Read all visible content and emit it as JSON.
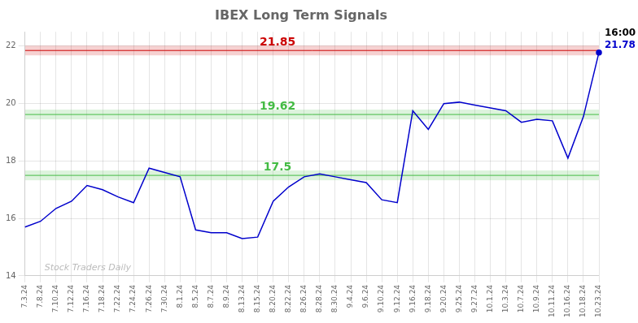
{
  "chart_data": {
    "type": "line",
    "title": "IBEX Long Term Signals",
    "categories": [
      "7.3.24",
      "7.8.24",
      "7.10.24",
      "7.12.24",
      "7.16.24",
      "7.18.24",
      "7.22.24",
      "7.24.24",
      "7.26.24",
      "7.30.24",
      "8.1.24",
      "8.5.24",
      "8.7.24",
      "8.9.24",
      "8.13.24",
      "8.15.24",
      "8.20.24",
      "8.22.24",
      "8.26.24",
      "8.28.24",
      "8.30.24",
      "9.4.24",
      "9.6.24",
      "9.10.24",
      "9.12.24",
      "9.16.24",
      "9.18.24",
      "9.20.24",
      "9.25.24",
      "9.27.24",
      "10.1.24",
      "10.3.24",
      "10.7.24",
      "10.9.24",
      "10.11.24",
      "10.16.24",
      "10.18.24",
      "10.23.24"
    ],
    "values": [
      15.7,
      15.9,
      16.35,
      16.6,
      17.15,
      17.0,
      16.75,
      16.55,
      17.75,
      17.6,
      17.45,
      15.6,
      15.5,
      15.5,
      15.3,
      15.35,
      16.6,
      17.1,
      17.45,
      17.55,
      17.45,
      17.35,
      17.25,
      16.65,
      16.55,
      19.75,
      19.1,
      20.0,
      20.05,
      19.95,
      19.85,
      19.75,
      19.35,
      19.45,
      19.4,
      18.1,
      19.55,
      21.78
    ],
    "color": "#0000cc",
    "hlines": [
      {
        "value": 21.85,
        "color": "#cc0000"
      },
      {
        "value": 19.62,
        "color": "#44bb44"
      },
      {
        "value": 17.5,
        "color": "#44bb44"
      }
    ],
    "last_point_labels": [
      "16:00",
      "21.78"
    ],
    "watermark": "Stock Traders Daily",
    "ylim": [
      14,
      22.5
    ],
    "yticks": [
      14,
      16,
      18,
      20,
      22
    ],
    "grid": true
  }
}
